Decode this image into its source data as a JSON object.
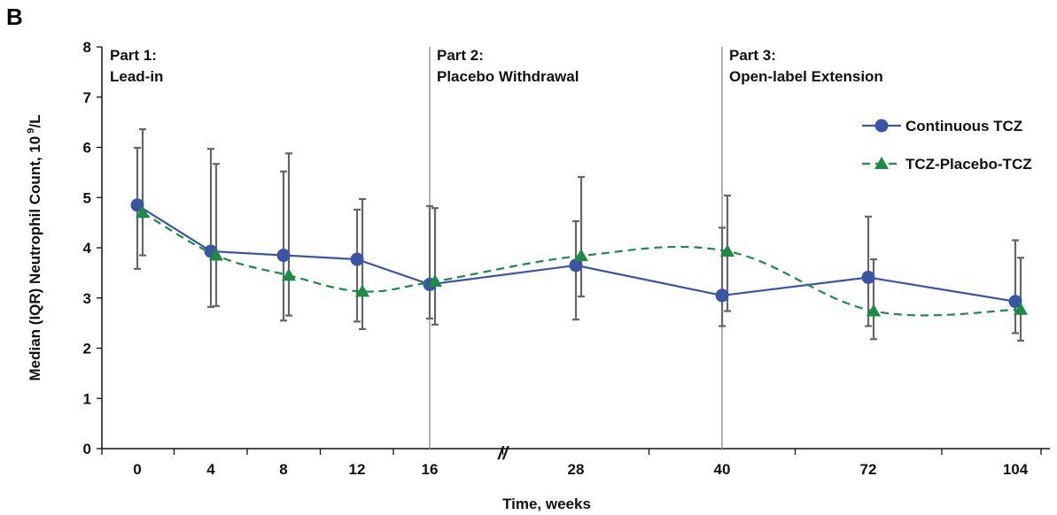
{
  "panel_label": "B",
  "chart_data": {
    "type": "line",
    "title": "",
    "xlabel": "Time, weeks",
    "ylabel_main": "Median (IQR) Neutrophil Count, 10",
    "ylabel_sup": " 9",
    "ylabel_tail": "/L",
    "ylim": [
      0,
      8
    ],
    "yticks": [
      "0",
      "1",
      "2",
      "3",
      "4",
      "5",
      "6",
      "7",
      "8"
    ],
    "categories": [
      "0",
      "4",
      "8",
      "12",
      "16",
      "28",
      "40",
      "72",
      "104"
    ],
    "axis_break_marker": "//",
    "legend_position": "top-right",
    "part_labels": [
      {
        "line1": "Part 1:",
        "line2": "Lead-in",
        "at_category": 0
      },
      {
        "line1": "Part 2:",
        "line2": "Placebo Withdrawal",
        "at_category": 4
      },
      {
        "line1": "Part 3:",
        "line2": "Open-label Extension",
        "at_category": 6
      }
    ],
    "series": [
      {
        "name": "Continuous TCZ",
        "color": "#3a55a4",
        "marker": "circle",
        "dash": "solid",
        "values": [
          4.85,
          3.93,
          3.85,
          3.77,
          3.27,
          3.65,
          3.05,
          3.41,
          2.93
        ],
        "q1": [
          3.58,
          2.82,
          2.55,
          2.53,
          2.59,
          2.57,
          2.44,
          2.44,
          2.3
        ],
        "q3": [
          5.99,
          5.97,
          5.52,
          4.76,
          4.83,
          4.53,
          4.4,
          4.62,
          4.15
        ]
      },
      {
        "name": "TCZ-Placebo-TCZ",
        "color": "#1d8a45",
        "marker": "triangle",
        "dash": "dashed",
        "values": [
          4.7,
          3.85,
          3.45,
          3.13,
          3.33,
          3.84,
          3.93,
          2.74,
          2.77
        ],
        "q1": [
          3.85,
          2.84,
          2.65,
          2.38,
          2.47,
          3.03,
          2.74,
          2.18,
          2.15
        ],
        "q3": [
          6.36,
          5.67,
          5.88,
          4.97,
          4.79,
          5.41,
          5.04,
          3.77,
          3.8
        ]
      }
    ]
  }
}
